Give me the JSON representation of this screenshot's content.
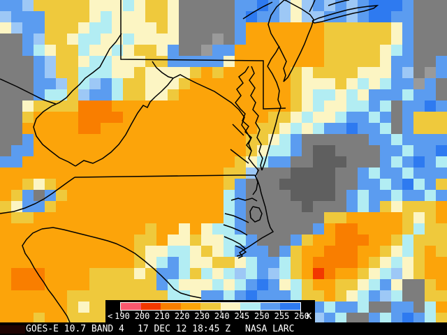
{
  "map": {
    "cell_size": 16,
    "cols": 40,
    "palette": {
      "O": "#FCA40A",
      "D": "#F97E00",
      "R": "#F23800",
      "G": "#EFC93C",
      "C": "#FCF5C3",
      "Y": "#B2EDF3",
      "L": "#9DC8F6",
      "B": "#5B9CF0",
      "U": "#2E7AF0",
      "g": "#7D7D7D",
      "d": "#5F5F5F",
      "l": "#9A9A9A"
    },
    "rows": [
      "BBLGGGGGCCCYCGGCgggggBBUBLCLBLBLBUUUBggg",
      "LBBBGGGGCYCCCGGCgggggBUBBLCLLBBLBUUBBggg",
      "CLBBGGGCYYCCCCGCgggggBOOOOOOOGGGGGGCBggg",
      "ggBLGGCYYCCYCCCCggglgBOOOOOOOGGGGGGCBggg",
      "ggBYCGGYCCYCGGCBgglBBOOOOOOOOGGGGGCYBggg",
      "gggBLGGCYYCCCGGBBBBBCOOOOOOOOGGGGGCBBggB",
      "gggBLGGYYYCCGCCCCGOGOOOOOOGCGGGGCCCBLglB",
      "gggBBLGYLBYGGCCCGOOOOOOOOOGCCCGCYCYBBlBg",
      "gggBYYGLBBYGGCCGOOOOOOOOOOGCYYCYCBBBYBBg",
      "ggCGGGGDDDOOOOOOOOOOOOOOOOGCYCCYYBYgBBUB",
      "ggGOOOODDDDOOOOOOOOOOOOOGGCYCCYBBYBgBGGG",
      "ggOOOOODDOOOOOOOOOOOOOOGGCYCYBBUBBYgBGGG",
      "ggBOOOOOOOOOOOOOOOOOOOGGCYBggggggBBYBBBB",
      "gBBOOOOOOOOOOOOOOOOOOOGCYYBgddggggBBYBBU",
      "BBOOOOOOOOOOOOOOOOOOOGCYBBggdddgggBYBUBY",
      "OOOOOOOOOOOOOOOOOOOOGGLgggddddggBYBBYBBB",
      "OOGCGOOOOOOOOOOOOOOOGBgggdddddggBBYBUYBG",
      "OGBgBGOOOOOOOOOOOOOOYBggggddddgBYBBYBBYB",
      "GCBBGOOOOOOOOOOOOOOOYBgggggdgggBYBGCGGGO",
      "OGGOOOOOOOOOOOOOOOOOYBgggggggGGOOOOOGCGO",
      "OOOOOOOOOOOOOGOOCOCYYBggggggBODDOOOOGYGG",
      "OOOOOOOOOOOOGGOCCGCCYYBgggBGOODDDOOGYGGG",
      "OOOOOOOOOOOOGCCYYCGCYBBBgBGOODDDOOGCYGOG",
      "OOOOOOOOOOOOGCYBYCCGGCYBBYGODDDDOGCYCGOO",
      "ODDDOOOOGGGGCGBBYGYCYLYBLYGORDOOGCYLCGOO",
      "ODDDOOOOGGGGGGBYCCCYCYBUBCYGOOGGCYBCggGO",
      "OOOOOOGGGGGGGGGYYCBBYBUBBBYGGOGCYBLYggGG",
      "OOOOOOGCGGGGCYBBYCBBYBBYBBYBBYBBYggBBgYO",
      "OOOGOOGGGGGGGCBYBBYBBYBBBYBBLBYggBYBUBYG"
    ],
    "border_color": "#000000",
    "borders": [
      "M173,0 L173,85 L377,87 L377,156 L409,155",
      "M174,48 L166,60 L157,70 L150,83 L143,96 L133,104 L122,112 L114,121 L104,130 L95,140 L85,147 L74,152 L62,160 L52,170 L48,182 L52,195 L61,207 L72,216 L85,226 L98,232 L108,238",
      "M80,149 L62,143 L44,134 L24,124 L0,113",
      "M108,238 L120,230 L133,234 L147,227 L159,218 L170,207 L180,193 L188,178 L197,162 L205,151 L211,154 L215,146 L222,139 L231,131 L240,122 L248,112",
      "M218,88 L224,97 L232,104 L241,110 L248,112 L258,107 L269,113 L281,119 L294,125 L307,131 L319,139 L331,147 L342,157 L350,168 L346,179 L353,189 L359,199 L353,208 L360,216",
      "M356,95 L351,103 L342,110 L348,119 L339,128 L345,137 L337,147 L344,156 L351,163 L347,173 L356,181 L351,189 L360,197 L356,206 L360,216 L356,227 L363,236 L370,244 L366,252 L369,261 L367,272 L362,279",
      "M360,95 L364,105 L357,115 L365,126 L359,137 L366,147 L362,157 L370,166 L366,176 L372,186 L368,197 L374,207 L371,217 L376,227 L373,237 L375,244",
      "M383,95 L390,106 L396,118 L400,130 L398,143 L402,153 L398,165 L395,177 L391,191 L387,205 L383,219 L379,233 L375,244",
      "M383,95 L388,85 L395,75 L400,66",
      "M407,0 L396,10 L388,22 L384,35 L388,48 L394,58 L400,68 L405,78 L410,88 L406,98 L409,108 L406,117 L412,111 L418,100 L424,88 L430,76 L436,63 L441,50 L446,38 L449,28 L444,21 L432,13 L419,6 L410,1 L407,0",
      "M447,30 L456,26 L469,22 L483,18 L498,14 L513,11 L528,9 L540,8 L535,12 L521,16 L506,19 L490,23 L475,27 L461,31 L450,33 L447,30",
      "M443,17 L447,9 L451,0",
      "M470,8 L482,4 L494,1 L500,0",
      "M348,27 L362,18 L376,10 L390,3",
      "M107,254 L180,253 L260,252 L340,251 L365,251",
      "M107,254 L97,261 L86,269 L75,277 L63,285 L50,292 L36,298 L20,303 L0,306",
      "M60,328 L47,334 L38,343 L32,352 L36,363 L43,373 L49,384 L56,395 L63,405 L69,415 L76,424 L83,434 L90,444 L96,453 L100,462",
      "M60,328 L76,326 L91,329 L107,333 L123,337 L139,341 L154,345 L166,349 L179,355 L193,363 L206,373 L219,384 L231,395 L241,405 L249,414 L259,420 L273,424 L288,427",
      "M365,251 L369,259 L372,268 L374,277 L377,287 L380,297 L382,307 L384,317 L387,326 L391,332 L384,336 L375,341 L366,347 L357,353 L349,358 L343,362 L347,367 L341,370",
      "M331,287 L341,284 L351,287 L361,284 L368,288",
      "M362,296 L371,298 L375,306 L372,315 L365,318 L359,312 L358,303 L362,296",
      "M322,306 L334,309 L346,314 L356,319",
      "M320,322 L332,326 L344,331 L354,337",
      "M321,339 L333,344 L344,350 L352,357",
      "M337,352 L346,356 L352,361 L346,365 L339,367",
      "M330,214 L339,221 L348,228 L356,234",
      "M333,178 L341,186 L349,194"
    ]
  },
  "legend": {
    "background": "#000000",
    "prefix": "<",
    "unit": "K",
    "tick_labels": [
      "190",
      "200",
      "210",
      "220",
      "230",
      "240",
      "245",
      "250",
      "255",
      "260"
    ],
    "segment_colors": [
      "#F9586E",
      "#F23800",
      "#F97E00",
      "#FCA40A",
      "#EFC93C",
      "#FCF5C3",
      "#B2EDF3",
      "#5B9CF0",
      "#2E7AF0"
    ]
  },
  "status_bar": {
    "instrument": "GOES-E 10.7 BAND 4",
    "timestamp": "17 DEC 12 18:45 Z",
    "credit": "NASA LARC"
  }
}
